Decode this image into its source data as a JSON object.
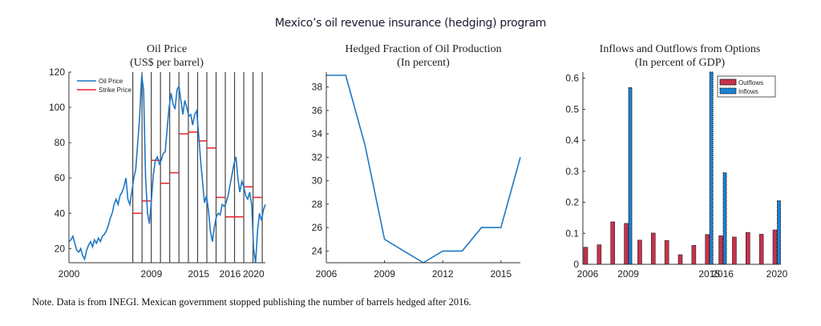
{
  "header": {
    "title": "Mexico’s oil revenue insurance (hedging) program"
  },
  "footer": {
    "note": "Note. Data is from INEGI. Mexican government stopped publishing the number of barrels hedged after 2016."
  },
  "colors": {
    "oil": "#1f77c4",
    "strike": "#e8202a",
    "outflows": "#c8314a",
    "inflows": "#1a82d4",
    "vline": "#333333"
  },
  "chart_data": [
    {
      "type": "line",
      "title": "Oil Price",
      "subtitle": "(US$ per barrel)",
      "ylim": [
        12,
        120
      ],
      "yticks": [
        20,
        40,
        60,
        80,
        100,
        120
      ],
      "xticks": [
        {
          "label": "2000",
          "pos": 0
        },
        {
          "label": "2009",
          "pos": 0.42
        },
        {
          "label": "2015",
          "pos": 0.66
        },
        {
          "label": "2016",
          "pos": 0.82
        },
        {
          "label": "2020",
          "pos": 0.94
        }
      ],
      "legend": {
        "position": "top-left",
        "entries": [
          "Oil Price",
          "Strike Price"
        ]
      },
      "vertical_lines": [
        0.325,
        0.372,
        0.419,
        0.466,
        0.513,
        0.56,
        0.608,
        0.655,
        0.702,
        0.749,
        0.796,
        0.843,
        0.89,
        0.937,
        0.984
      ],
      "series": [
        {
          "name": "Oil Price",
          "x": [
            0,
            0.01,
            0.02,
            0.03,
            0.04,
            0.05,
            0.06,
            0.07,
            0.08,
            0.09,
            0.1,
            0.11,
            0.12,
            0.13,
            0.14,
            0.15,
            0.16,
            0.17,
            0.18,
            0.19,
            0.2,
            0.21,
            0.22,
            0.23,
            0.24,
            0.25,
            0.26,
            0.27,
            0.28,
            0.29,
            0.3,
            0.31,
            0.32,
            0.33,
            0.34,
            0.35,
            0.36,
            0.37,
            0.38,
            0.39,
            0.4,
            0.41,
            0.42,
            0.43,
            0.44,
            0.45,
            0.46,
            0.47,
            0.48,
            0.49,
            0.5,
            0.51,
            0.52,
            0.53,
            0.54,
            0.55,
            0.56,
            0.57,
            0.58,
            0.59,
            0.6,
            0.61,
            0.62,
            0.63,
            0.64,
            0.65,
            0.66,
            0.67,
            0.68,
            0.69,
            0.7,
            0.71,
            0.72,
            0.73,
            0.74,
            0.75,
            0.76,
            0.77,
            0.78,
            0.79,
            0.8,
            0.81,
            0.82,
            0.83,
            0.84,
            0.85,
            0.86,
            0.87,
            0.88,
            0.89,
            0.9,
            0.91,
            0.92,
            0.93,
            0.94,
            0.95,
            0.96,
            0.97,
            0.98,
            0.99,
            1.0
          ],
          "values": [
            24,
            25,
            27,
            23,
            19,
            18,
            20,
            16,
            14,
            19,
            22,
            24,
            21,
            25,
            23,
            26,
            24,
            27,
            28,
            30,
            33,
            37,
            40,
            45,
            48,
            45,
            50,
            52,
            55,
            60,
            48,
            45,
            52,
            60,
            65,
            80,
            95,
            118,
            110,
            60,
            40,
            34,
            48,
            62,
            70,
            72,
            68,
            70,
            74,
            75,
            88,
            100,
            108,
            102,
            99,
            110,
            112,
            104,
            96,
            104,
            100,
            95,
            96,
            90,
            96,
            98,
            85,
            70,
            58,
            46,
            50,
            42,
            30,
            24,
            32,
            38,
            40,
            39,
            45,
            44,
            46,
            50,
            56,
            62,
            68,
            72,
            60,
            52,
            58,
            55,
            50,
            48,
            52,
            45,
            20,
            12,
            30,
            40,
            36,
            42,
            45
          ]
        },
        {
          "name": "Strike Price",
          "segments": [
            {
              "x0": 0.325,
              "x1": 0.372,
              "value": 40
            },
            {
              "x0": 0.372,
              "x1": 0.419,
              "value": 47
            },
            {
              "x0": 0.419,
              "x1": 0.466,
              "value": 70
            },
            {
              "x0": 0.466,
              "x1": 0.513,
              "value": 57
            },
            {
              "x0": 0.513,
              "x1": 0.56,
              "value": 63
            },
            {
              "x0": 0.56,
              "x1": 0.608,
              "value": 85
            },
            {
              "x0": 0.608,
              "x1": 0.655,
              "value": 86
            },
            {
              "x0": 0.655,
              "x1": 0.702,
              "value": 81
            },
            {
              "x0": 0.702,
              "x1": 0.749,
              "value": 77
            },
            {
              "x0": 0.749,
              "x1": 0.796,
              "value": 49
            },
            {
              "x0": 0.796,
              "x1": 0.89,
              "value": 38
            },
            {
              "x0": 0.89,
              "x1": 0.937,
              "value": 55
            },
            {
              "x0": 0.937,
              "x1": 0.984,
              "value": 49
            }
          ]
        }
      ]
    },
    {
      "type": "line",
      "title": "Hedged Fraction of Oil Production",
      "subtitle": "(In percent)",
      "xlim": [
        2006,
        2016
      ],
      "ylim": [
        23,
        39
      ],
      "yticks": [
        24,
        26,
        28,
        30,
        32,
        34,
        36,
        38
      ],
      "xticks": [
        2006,
        2009,
        2012,
        2015
      ],
      "series": [
        {
          "name": "Hedged fraction",
          "x": [
            2006,
            2007,
            2008,
            2009,
            2010,
            2011,
            2012,
            2013,
            2014,
            2015,
            2016
          ],
          "values": [
            39,
            39,
            33,
            25,
            24,
            23,
            24,
            24,
            26,
            26,
            32
          ]
        }
      ]
    },
    {
      "type": "bar",
      "title": "Inflows and Outflows from Options",
      "subtitle": "(In percent of GDP)",
      "ylim": [
        0,
        0.62
      ],
      "yticks": [
        0,
        0.1,
        0.2,
        0.3,
        0.4,
        0.5,
        0.6
      ],
      "xticks": [
        {
          "label": "2006",
          "index": 0
        },
        {
          "label": "2009",
          "index": 3
        },
        {
          "label": "2015",
          "index": 9
        },
        {
          "label": "2016",
          "index": 10
        },
        {
          "label": "2020",
          "index": 14
        }
      ],
      "legend": {
        "position": "top-right",
        "entries": [
          "Outflows",
          "Inflows"
        ]
      },
      "categories": [
        "2006",
        "2007",
        "2008",
        "2009",
        "2010",
        "2011",
        "2012",
        "2013",
        "2014",
        "2015",
        "2016",
        "2017",
        "2018",
        "2019",
        "2020"
      ],
      "series": [
        {
          "name": "Outflows",
          "values": [
            0.055,
            0.063,
            0.137,
            0.132,
            0.078,
            0.101,
            0.077,
            0.031,
            0.061,
            0.096,
            0.092,
            0.088,
            0.103,
            0.097,
            0.111
          ]
        },
        {
          "name": "Inflows",
          "values": [
            0,
            0,
            0,
            0.57,
            0,
            0,
            0,
            0,
            0,
            0.64,
            0.295,
            0,
            0,
            0,
            0.205
          ]
        }
      ]
    }
  ]
}
